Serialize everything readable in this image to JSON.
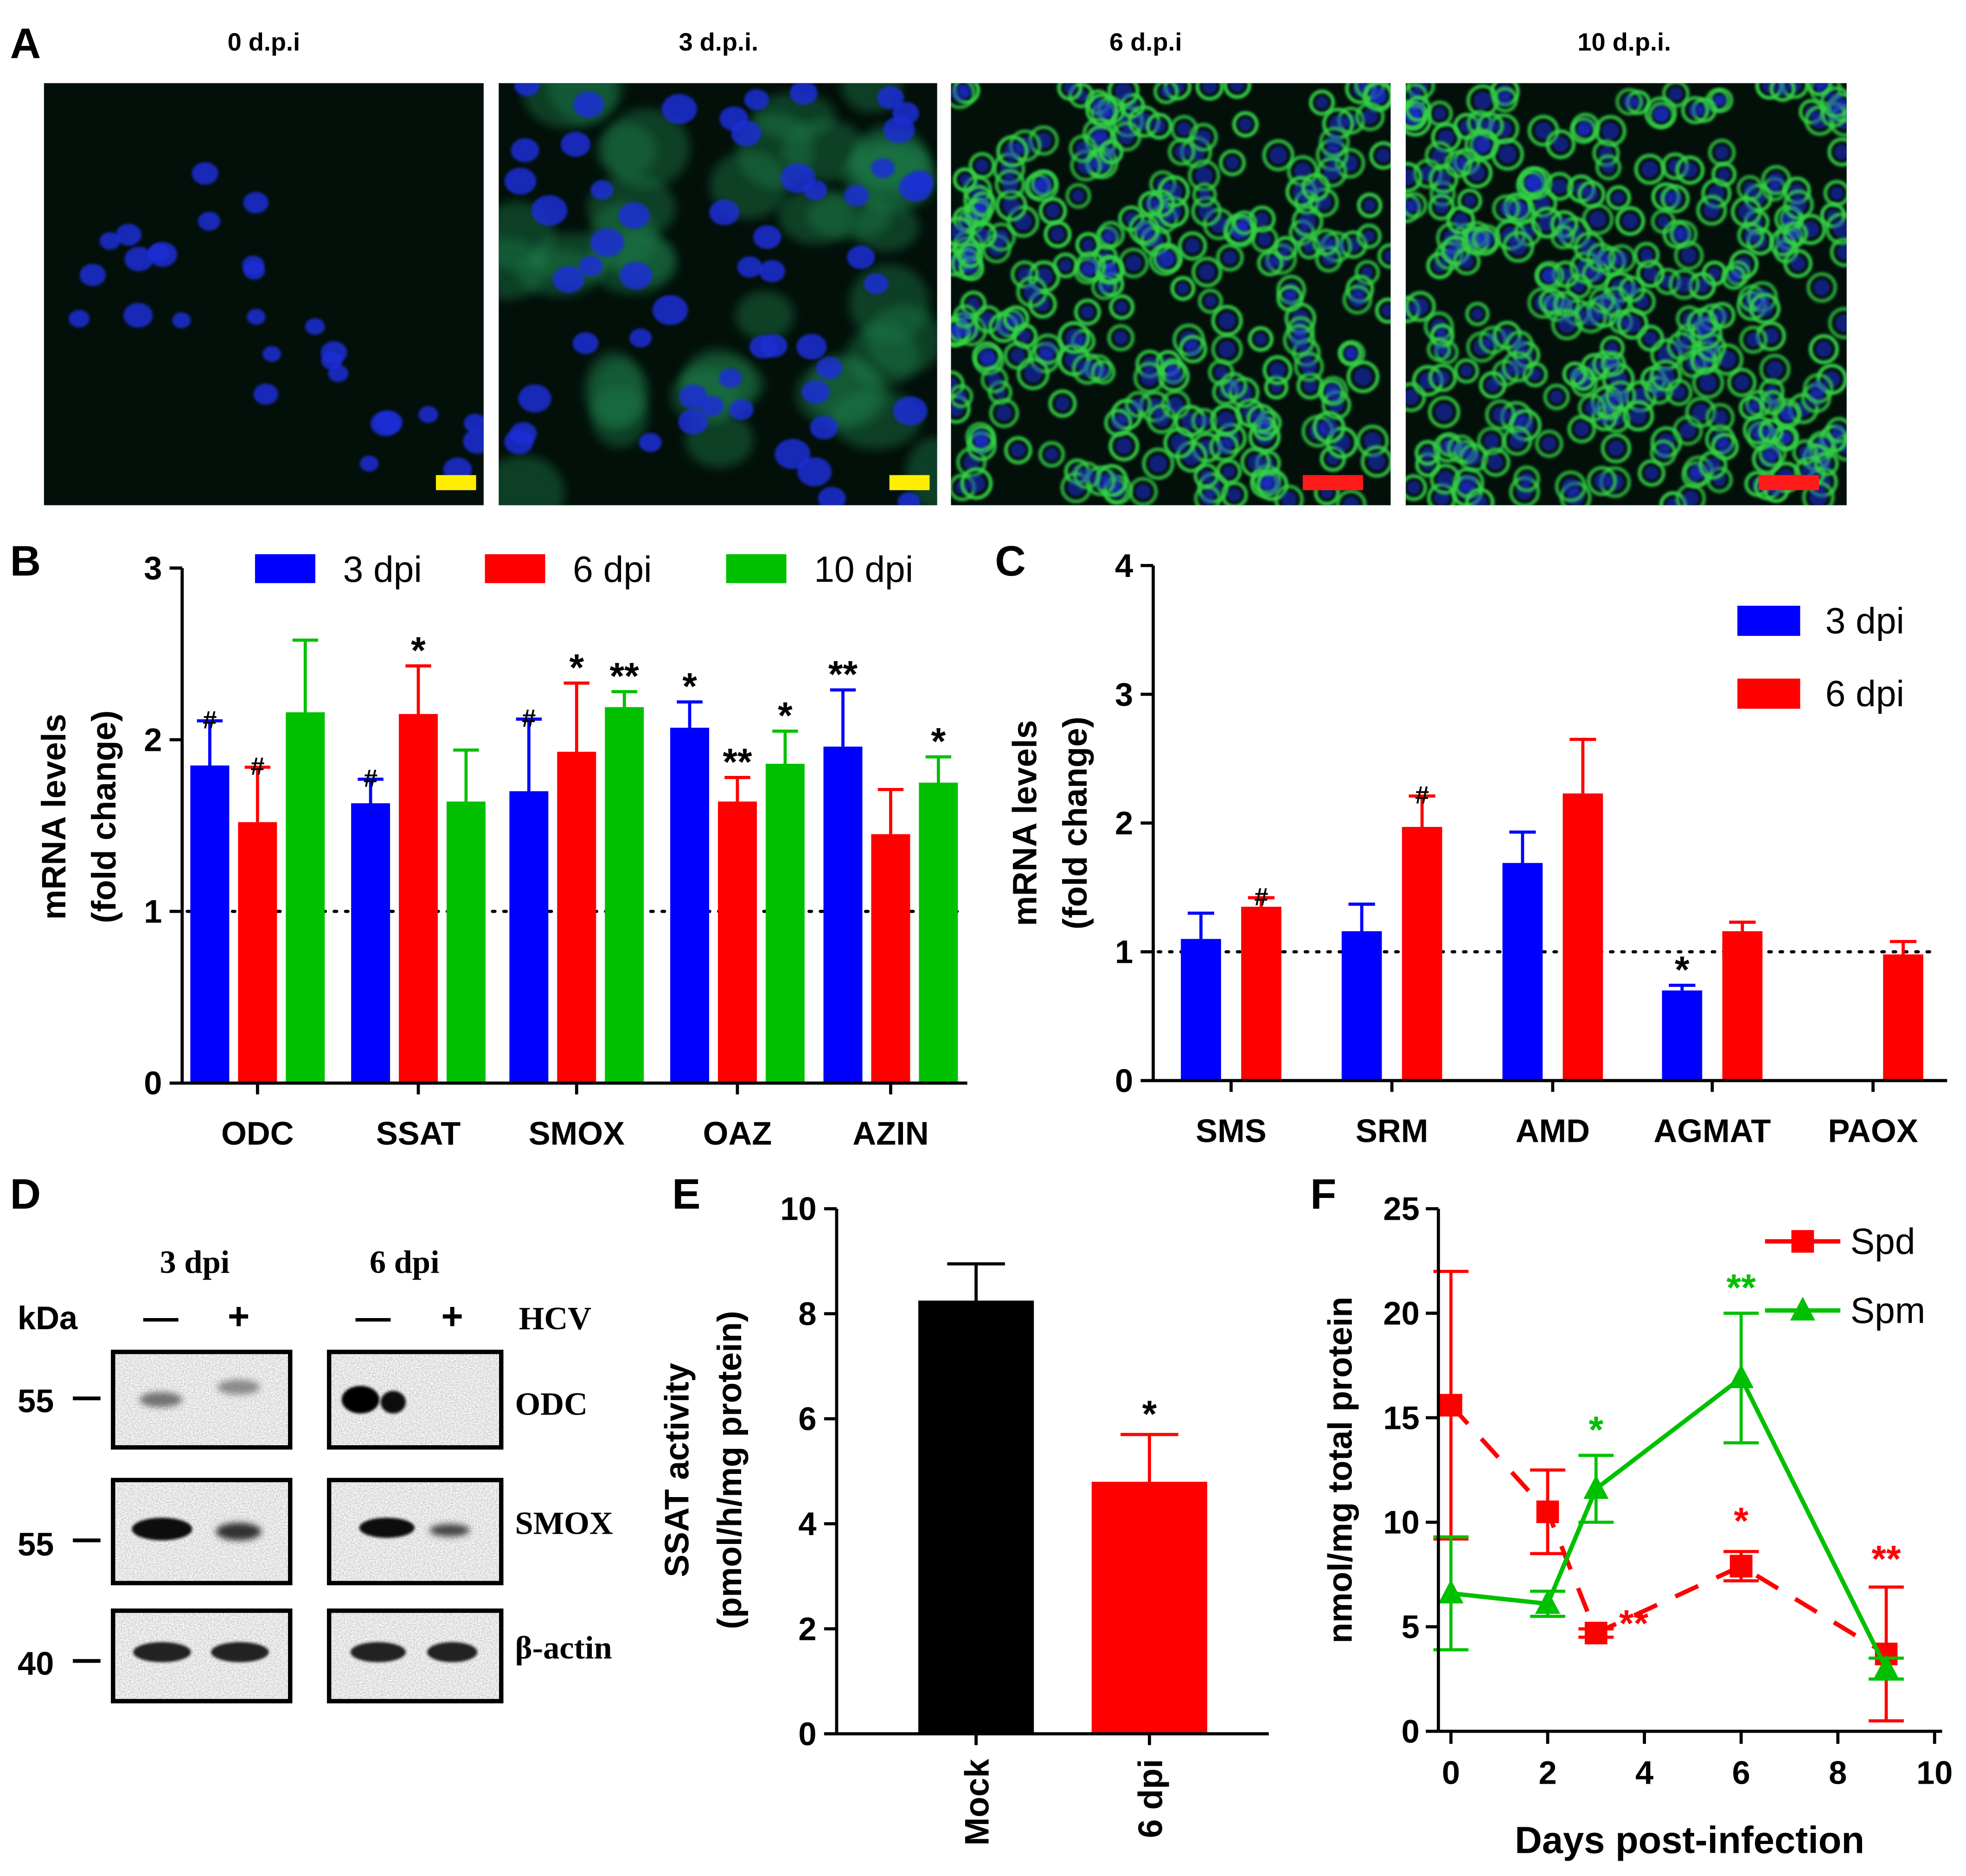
{
  "figure": {
    "panel_labels": {
      "A": "A",
      "B": "B",
      "C": "C",
      "D": "D",
      "E": "E",
      "F": "F"
    }
  },
  "panel_a": {
    "timepoints": [
      "0 d.p.i",
      "3 d.p.i.",
      "6 d.p.i",
      "10 d.p.i."
    ],
    "colors": {
      "nucleus": "#1f2fd6",
      "stain": "#35d04a",
      "background": "#03100a",
      "scalebar_yellow": "#ffee00",
      "scalebar_red": "#ff1a1a"
    }
  },
  "panel_d": {
    "kda_label": "kDa",
    "hcv_label": "HCV",
    "group_labels": [
      "3 dpi",
      "6 dpi"
    ],
    "lane_signs": [
      "—",
      "+",
      "—",
      "+"
    ],
    "markers": [
      "55",
      "55",
      "40"
    ],
    "proteins": [
      "ODC",
      "SMOX",
      "β-actin"
    ]
  },
  "colors": {
    "blue": "#0000ff",
    "red": "#ff0000",
    "green": "#00c000",
    "black": "#000000"
  },
  "chart_data": [
    {
      "id": "B",
      "type": "bar",
      "title": "",
      "xlabel": "",
      "ylabel_lines": [
        "mRNA levels",
        "(fold change)"
      ],
      "ylim": [
        0,
        3
      ],
      "yticks": [
        0,
        1,
        2,
        3
      ],
      "reference_line": 1,
      "categories": [
        "ODC",
        "SSAT",
        "SMOX",
        "OAZ",
        "AZIN"
      ],
      "series": [
        {
          "name": "3 dpi",
          "color": "#0000ff",
          "values": [
            1.85,
            1.63,
            1.7,
            2.07,
            1.96
          ],
          "errors": [
            0.26,
            0.14,
            0.42,
            0.15,
            0.33
          ],
          "marks": [
            "#",
            "#",
            "#",
            "*",
            "**"
          ]
        },
        {
          "name": "6 dpi",
          "color": "#ff0000",
          "values": [
            1.52,
            2.15,
            1.93,
            1.64,
            1.45
          ],
          "errors": [
            0.32,
            0.28,
            0.4,
            0.14,
            0.26
          ],
          "marks": [
            "#",
            "*",
            "*",
            "**",
            ""
          ]
        },
        {
          "name": "10 dpi",
          "color": "#00c000",
          "values": [
            2.16,
            1.64,
            2.19,
            1.86,
            1.75
          ],
          "errors": [
            0.42,
            0.3,
            0.09,
            0.19,
            0.15
          ],
          "marks": [
            "",
            "",
            "**",
            "*",
            "*"
          ]
        }
      ],
      "legend": "top"
    },
    {
      "id": "C",
      "type": "bar",
      "title": "",
      "xlabel": "",
      "ylabel_lines": [
        "mRNA levels",
        "(fold change)"
      ],
      "ylim": [
        0,
        4
      ],
      "yticks": [
        0,
        1,
        2,
        3,
        4
      ],
      "reference_line": 1,
      "categories": [
        "SMS",
        "SRM",
        "AMD",
        "AGMAT",
        "PAOX"
      ],
      "series": [
        {
          "name": "3 dpi",
          "color": "#0000ff",
          "values": [
            1.1,
            1.16,
            1.69,
            0.7,
            null
          ],
          "errors": [
            0.2,
            0.21,
            0.24,
            0.04,
            null
          ],
          "marks": [
            "",
            "",
            "",
            "*",
            ""
          ]
        },
        {
          "name": "6 dpi",
          "color": "#ff0000",
          "values": [
            1.35,
            1.97,
            2.23,
            1.16,
            0.98
          ],
          "errors": [
            0.07,
            0.24,
            0.42,
            0.07,
            0.1
          ],
          "marks": [
            "#",
            "#",
            "",
            "",
            ""
          ]
        }
      ],
      "legend": "top-right"
    },
    {
      "id": "E",
      "type": "bar",
      "title": "",
      "xlabel": "",
      "ylabel_lines": [
        "SSAT activity",
        "(pmol/h/mg protein)"
      ],
      "ylim": [
        0,
        10
      ],
      "yticks": [
        0,
        2,
        4,
        6,
        8,
        10
      ],
      "categories": [
        "Mock",
        "6 dpi"
      ],
      "values": [
        8.25,
        4.8
      ],
      "errors": [
        0.7,
        0.9
      ],
      "bar_colors": [
        "#000000",
        "#ff0000"
      ],
      "marks": [
        "",
        "*"
      ]
    },
    {
      "id": "F",
      "type": "line",
      "title": "",
      "xlabel": "Days post-infection",
      "ylabel": "nmol/mg total protein",
      "xlim": [
        0,
        10
      ],
      "ylim": [
        0,
        25
      ],
      "xticks": [
        0,
        2,
        4,
        6,
        8,
        10
      ],
      "yticks": [
        0,
        5,
        10,
        15,
        20,
        25
      ],
      "x": [
        0,
        2,
        3,
        6,
        9
      ],
      "series": [
        {
          "name": "Spd",
          "color": "#ff0000",
          "marker": "square",
          "values": [
            15.6,
            10.5,
            4.7,
            7.9,
            3.7
          ],
          "errors": [
            6.4,
            2.0,
            0.2,
            0.7,
            3.2
          ],
          "marks": [
            "",
            "",
            "**",
            "*",
            "**"
          ]
        },
        {
          "name": "Spm",
          "color": "#00c000",
          "marker": "triangle",
          "values": [
            6.6,
            6.1,
            11.6,
            16.9,
            3.0
          ],
          "errors": [
            2.7,
            0.6,
            1.6,
            3.1,
            0.5
          ],
          "marks": [
            "",
            "",
            "*",
            "**",
            ""
          ]
        }
      ],
      "legend": "top-right"
    }
  ]
}
